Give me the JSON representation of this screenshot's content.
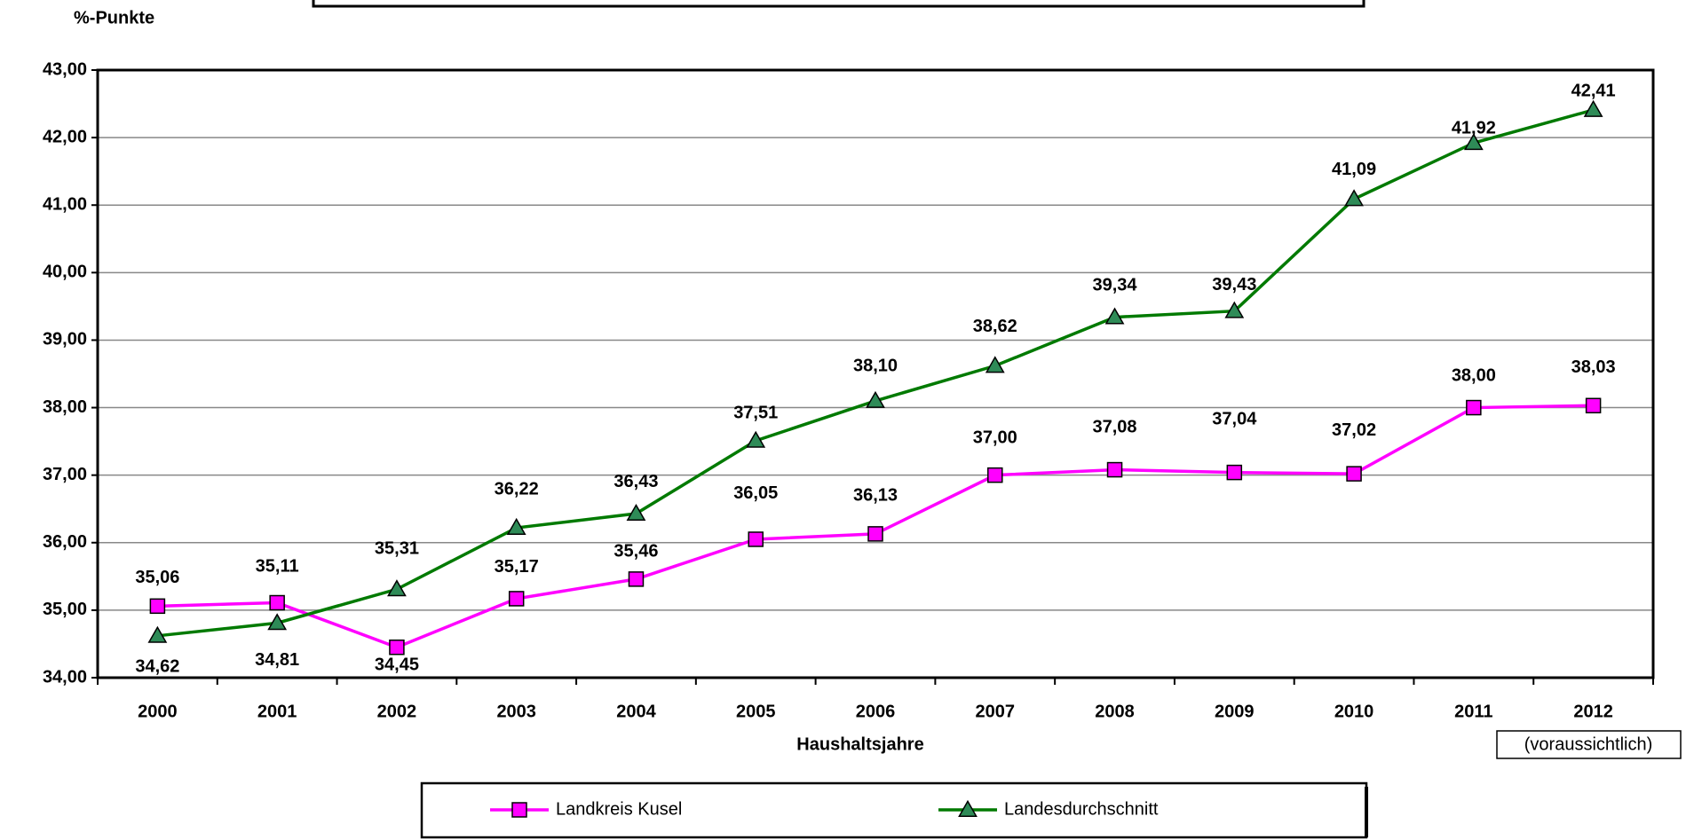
{
  "chart_data": {
    "type": "line",
    "y_label": "%-Punkte",
    "x_label": "Haushaltsjahre",
    "note": "(voraussichtlich)",
    "categories": [
      "2000",
      "2001",
      "2002",
      "2003",
      "2004",
      "2005",
      "2006",
      "2007",
      "2008",
      "2009",
      "2010",
      "2011",
      "2012"
    ],
    "series": [
      {
        "name": "Landkreis Kusel",
        "color": "#ff00ff",
        "marker": "square",
        "values": [
          35.06,
          35.11,
          34.45,
          35.17,
          35.46,
          36.05,
          36.13,
          37.0,
          37.08,
          37.04,
          37.02,
          38.0,
          38.03
        ],
        "value_labels": [
          "35,06",
          "35,11",
          "34,45",
          "35,17",
          "35,46",
          "36,05",
          "36,13",
          "37,00",
          "37,08",
          "37,04",
          "37,02",
          "38,00",
          "38,03"
        ]
      },
      {
        "name": "Landesdurchschnitt",
        "color": "#2e8b57",
        "marker": "triangle",
        "values": [
          34.62,
          34.81,
          35.31,
          36.22,
          36.43,
          37.51,
          38.1,
          38.62,
          39.34,
          39.43,
          41.09,
          41.92,
          42.41
        ],
        "value_labels": [
          "34,62",
          "34,81",
          "35,31",
          "36,22",
          "36,43",
          "37,51",
          "38,10",
          "38,62",
          "39,34",
          "39,43",
          "41,09",
          "41,92",
          "42,41"
        ]
      }
    ],
    "ylim": [
      34,
      43
    ],
    "yticks": [
      {
        "value": 34,
        "label": "34,00"
      },
      {
        "value": 35,
        "label": "35,00"
      },
      {
        "value": 36,
        "label": "36,00"
      },
      {
        "value": 37,
        "label": "37,00"
      },
      {
        "value": 38,
        "label": "38,00"
      },
      {
        "value": 39,
        "label": "39,00"
      },
      {
        "value": 40,
        "label": "40,00"
      },
      {
        "value": 41,
        "label": "41,00"
      },
      {
        "value": 42,
        "label": "42,00"
      },
      {
        "value": 43,
        "label": "43,00"
      }
    ],
    "grid": true,
    "legend": "bottom"
  }
}
